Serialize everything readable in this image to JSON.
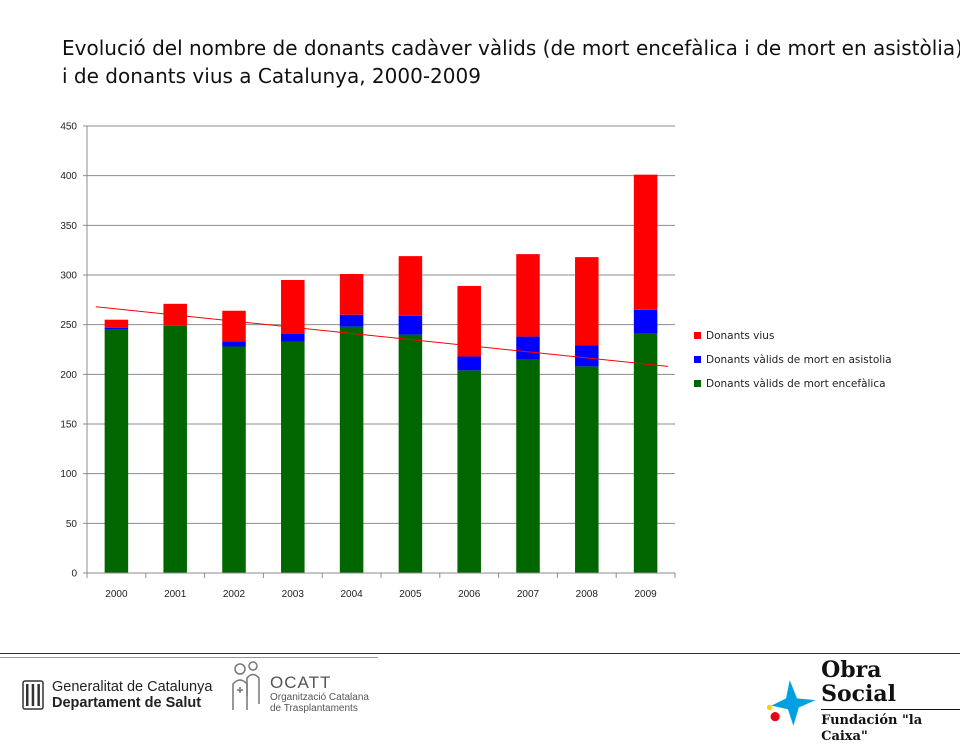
{
  "title": {
    "line1": "Evolució del nombre de donants cadàver vàlids (de mort encefàlica i de mort en asistòlia)",
    "line2": "i de donants vius a Catalunya, 2000-2009"
  },
  "chart_data": {
    "type": "bar",
    "stacked": true,
    "categories": [
      "2000",
      "2001",
      "2002",
      "2003",
      "2004",
      "2005",
      "2006",
      "2007",
      "2008",
      "2009"
    ],
    "series": [
      {
        "name": "Donants vàlids de mort encefàlica",
        "color": "#006600",
        "values": [
          245,
          249,
          228,
          233,
          248,
          240,
          204,
          215,
          208,
          241
        ]
      },
      {
        "name": "Donants vàlids de mort en asistolia",
        "color": "#0000ff",
        "values": [
          2,
          0,
          5,
          8,
          12,
          19,
          14,
          23,
          21,
          24
        ]
      },
      {
        "name": "Donants vius",
        "color": "#ff0000",
        "values": [
          8,
          22,
          31,
          54,
          41,
          60,
          71,
          83,
          89,
          136
        ]
      }
    ],
    "trendline": {
      "color": "#ff0000",
      "start": 268,
      "end": 208
    },
    "ylim": [
      0,
      450
    ],
    "yticks": [
      0,
      50,
      100,
      150,
      200,
      250,
      300,
      350,
      400,
      450
    ],
    "grid": true,
    "legend_position": "right",
    "legend_order": [
      "Donants vius",
      "Donants vàlids de mort en asistolia",
      "Donants vàlids de mort encefàlica"
    ]
  },
  "footer": {
    "gencat_line1": "Generalitat de Catalunya",
    "gencat_line2": "Departament de Salut",
    "ocatt_name": "OCATT",
    "ocatt_line1": "Organització Catalana",
    "ocatt_line2": "de Trasplantaments",
    "obra_line1": "Obra Social",
    "obra_line2": "Fundación \"la Caixa\""
  }
}
